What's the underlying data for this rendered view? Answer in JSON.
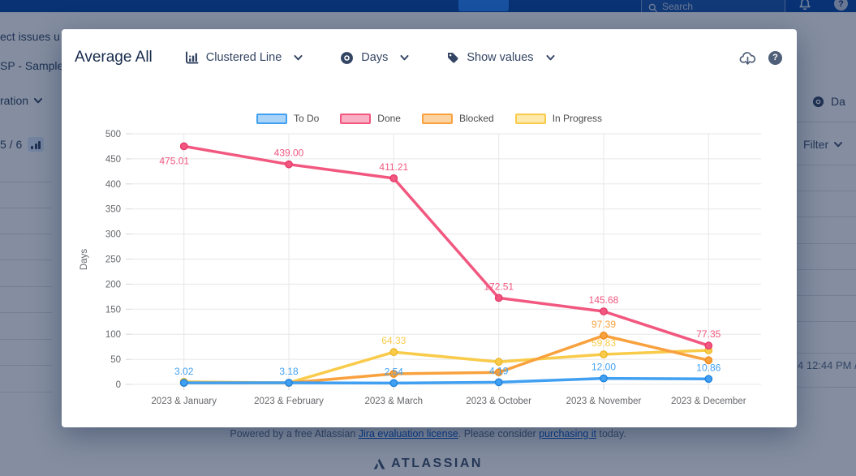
{
  "navbar": {
    "search_placeholder": "Search"
  },
  "background": {
    "left_texts": [
      "ect issues u",
      "SP - Sample",
      "ration",
      "5 / 6"
    ],
    "right": {
      "days_label": "Da",
      "filter_label": "Filter",
      "timestamp": "4 12:44 PM / '"
    }
  },
  "modal": {
    "title": "Average All",
    "controls": [
      {
        "label": "Clustered Line",
        "icon": "bar-chart-icon"
      },
      {
        "label": "Days",
        "icon": "eye-icon"
      },
      {
        "label": "Show values",
        "icon": "tag-icon"
      }
    ]
  },
  "footer": {
    "text_prefix": "Powered by a free Atlassian ",
    "link1": "Jira evaluation license",
    "text_mid": ". Please consider ",
    "link2": "purchasing it",
    "text_suffix": " today.",
    "logo_text": "ATLASSIAN"
  },
  "chart_data": {
    "type": "line",
    "title": "Average All",
    "ylabel": "Days",
    "ylim": [
      0,
      500
    ],
    "ytick_step": 50,
    "grid": true,
    "legend_position": "top",
    "categories": [
      "2023 & January",
      "2023 & February",
      "2023 & March",
      "2023 & October",
      "2023 & November",
      "2023 & December"
    ],
    "series": [
      {
        "name": "To Do",
        "color": "#41a0f1",
        "fill": "#a9d3f7",
        "marker_border": "#1f83dd",
        "values": [
          3.02,
          3.18,
          2.54,
          4.19,
          12,
          10.86
        ],
        "labels": [
          "3.02",
          "3.18",
          "2.54",
          "4.19",
          "12.00",
          "10.86"
        ]
      },
      {
        "name": "Done",
        "color": "#f2577f",
        "fill": "#f9afc4",
        "marker_border": "#e63a6c",
        "values": [
          475.01,
          439,
          411.21,
          172.51,
          145.68,
          77.35
        ],
        "labels": [
          "475.01",
          "439.00",
          "411.21",
          "172.51",
          "145.68",
          "77.35"
        ]
      },
      {
        "name": "Blocked",
        "color": "#f8a13d",
        "fill": "#fbd3a1",
        "marker_border": "#ee8c1f",
        "values": [
          3,
          3,
          21,
          24,
          97.39,
          48
        ],
        "labels": [
          "",
          "",
          "",
          "",
          "97.39",
          ""
        ]
      },
      {
        "name": "In Progress",
        "color": "#f9cb4a",
        "fill": "#fce9ab",
        "marker_border": "#eeb828",
        "values": [
          5,
          3,
          64.33,
          45,
          59.83,
          68
        ],
        "labels": [
          "",
          "",
          "64.33",
          "",
          "59.83",
          ""
        ]
      }
    ]
  }
}
